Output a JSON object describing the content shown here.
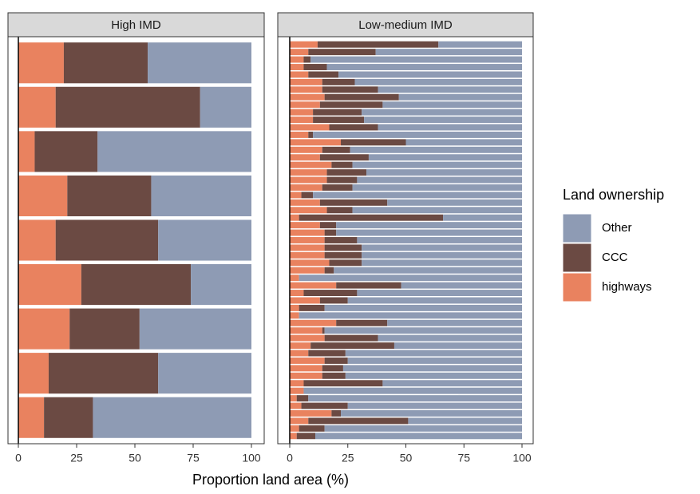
{
  "chart_data": [
    {
      "type": "bar",
      "orientation": "horizontal",
      "stacked": true,
      "title": "High IMD",
      "xlim": [
        0,
        100
      ],
      "xticks": [
        0,
        25,
        50,
        75,
        100
      ],
      "series": [
        {
          "name": "highways",
          "color": "#e9825f",
          "values": [
            19.5,
            16,
            7,
            21,
            16,
            27,
            22,
            13,
            11
          ]
        },
        {
          "name": "CCC",
          "color": "#6b4a43",
          "values": [
            36,
            62,
            27,
            36,
            44,
            47,
            30,
            47,
            21
          ]
        },
        {
          "name": "Other",
          "color": "#8e9bb4",
          "values": [
            44.5,
            22,
            66,
            43,
            40,
            26,
            48,
            40,
            68
          ]
        }
      ]
    },
    {
      "type": "bar",
      "orientation": "horizontal",
      "stacked": true,
      "title": "Low-medium IMD",
      "xlim": [
        0,
        100
      ],
      "xticks": [
        0,
        25,
        50,
        75,
        100
      ],
      "series": [
        {
          "name": "highways",
          "color": "#e9825f",
          "values": [
            12,
            8,
            6,
            6,
            8,
            14,
            14,
            15,
            13,
            10,
            10,
            17,
            8,
            22,
            14,
            13,
            18,
            16,
            16,
            14,
            5,
            13,
            16,
            4,
            13,
            15,
            15,
            15,
            15,
            17,
            15,
            4,
            20,
            6,
            13,
            4,
            4,
            20,
            14,
            15,
            9,
            8,
            15,
            14,
            14,
            6,
            6,
            3,
            5,
            18,
            8,
            4,
            3
          ]
        },
        {
          "name": "CCC",
          "color": "#6b4a43",
          "values": [
            52,
            29,
            3,
            10,
            13,
            14,
            24,
            32,
            27,
            21,
            22,
            21,
            2,
            28,
            12,
            21,
            9,
            17,
            13,
            13,
            5,
            29,
            11,
            62,
            7,
            5,
            14,
            16,
            16,
            14,
            4,
            0,
            28,
            23,
            12,
            11,
            0,
            22,
            1,
            23,
            36,
            16,
            10,
            9,
            10,
            34,
            0,
            5,
            20,
            4,
            43,
            11,
            8
          ]
        },
        {
          "name": "Other",
          "color": "#8e9bb4",
          "values": [
            36,
            63,
            91,
            84,
            79,
            72,
            62,
            53,
            60,
            69,
            68,
            62,
            90,
            50,
            74,
            66,
            73,
            67,
            71,
            73,
            90,
            58,
            73,
            34,
            80,
            80,
            71,
            69,
            69,
            69,
            81,
            96,
            52,
            71,
            75,
            85,
            96,
            58,
            85,
            62,
            55,
            76,
            75,
            77,
            76,
            60,
            94,
            92,
            75,
            78,
            49,
            85,
            89
          ]
        }
      ]
    }
  ],
  "xlabel": "Proportion land area (%)",
  "legend_title": "Land ownership"
}
